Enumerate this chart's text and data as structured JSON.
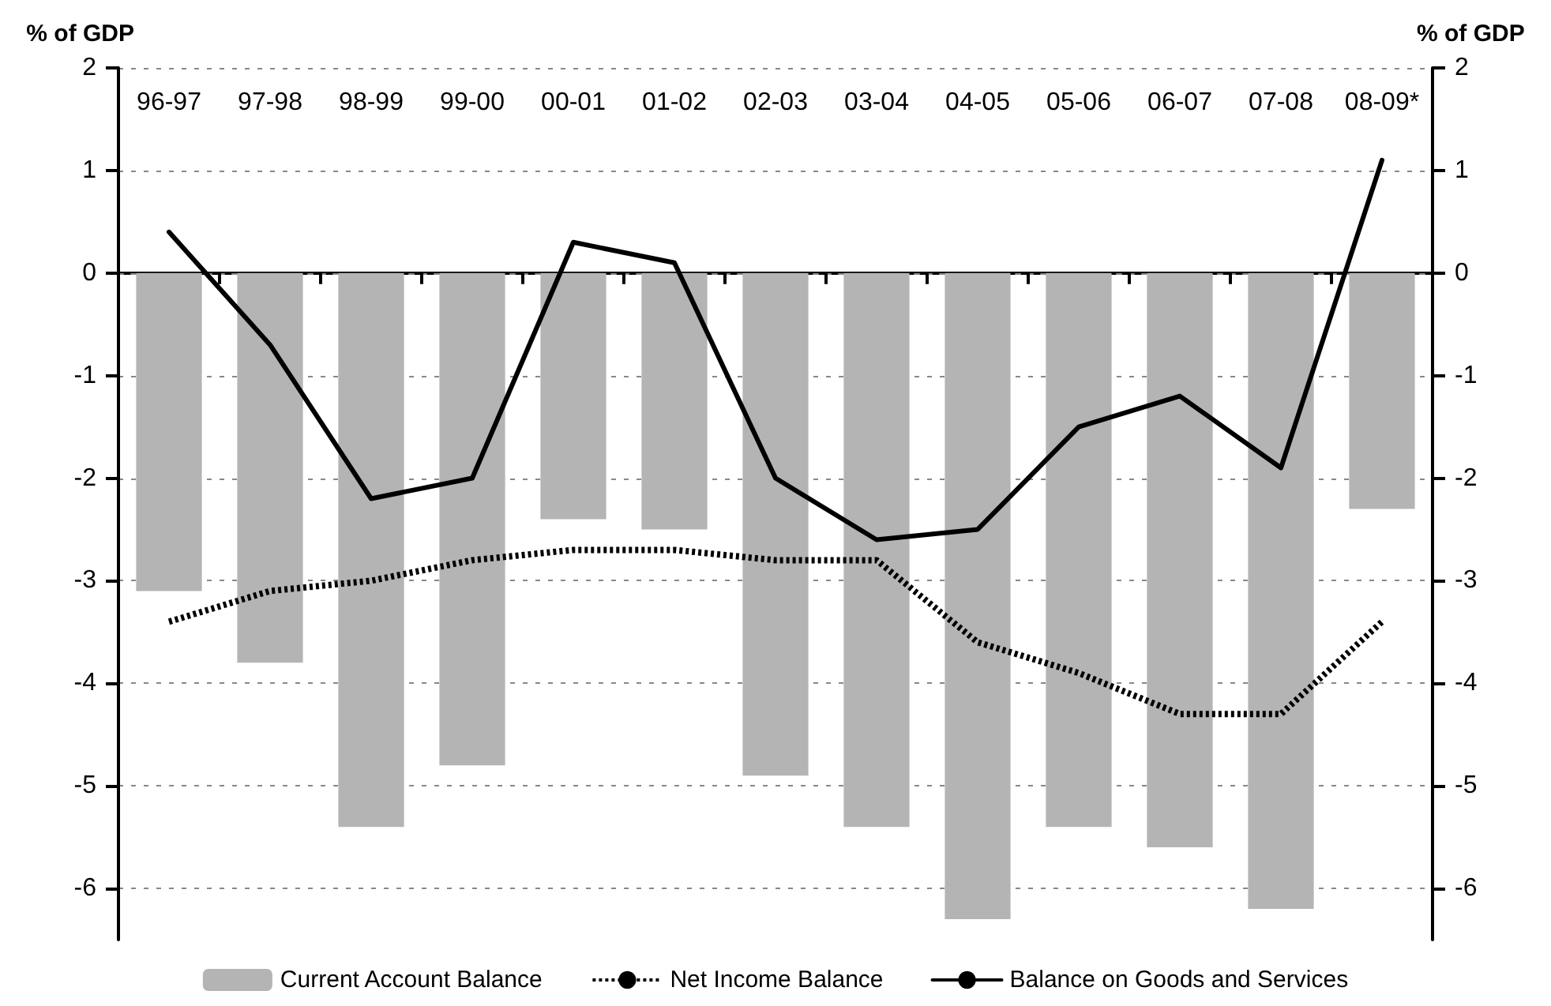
{
  "chart_data": {
    "type": "bar",
    "ylabel": "% of GDP",
    "y2label": "% of GDP",
    "categories": [
      "96-97",
      "97-98",
      "98-99",
      "99-00",
      "00-01",
      "01-02",
      "02-03",
      "03-04",
      "04-05",
      "05-06",
      "06-07",
      "07-08",
      "08-09*"
    ],
    "series": [
      {
        "name": "Current Account Balance",
        "color": "#b4b4b4",
        "values": [
          -3.1,
          -3.8,
          -5.4,
          -4.8,
          -2.4,
          -2.5,
          -4.9,
          -5.4,
          -6.3,
          -5.4,
          -5.6,
          -6.2,
          -2.3
        ]
      },
      {
        "name": "Net Income Balance",
        "type": "line",
        "color": "#000000",
        "line_style": "dotted",
        "values": [
          -3.4,
          -3.1,
          -3.0,
          -2.8,
          -2.7,
          -2.7,
          -2.8,
          -2.8,
          -3.6,
          -3.9,
          -4.3,
          -4.3,
          -3.4
        ]
      },
      {
        "name": "Balance on Goods and Services",
        "type": "line",
        "color": "#000000",
        "line_style": "solid",
        "values": [
          0.4,
          -0.7,
          -2.2,
          -2.0,
          0.3,
          0.1,
          -2.0,
          -2.6,
          -2.5,
          -1.5,
          -1.2,
          -1.9,
          1.1
        ]
      }
    ],
    "ylim": [
      -6.5,
      2
    ],
    "yticks": [
      -6,
      -5,
      -4,
      -3,
      -2,
      -1,
      0,
      1,
      2
    ],
    "y2lim": [
      -6.5,
      2
    ],
    "y2ticks": [
      -6,
      -5,
      -4,
      -3,
      -2,
      -1,
      0,
      1,
      2
    ],
    "grid": "y",
    "legend": "bottom",
    "marker": "none"
  }
}
